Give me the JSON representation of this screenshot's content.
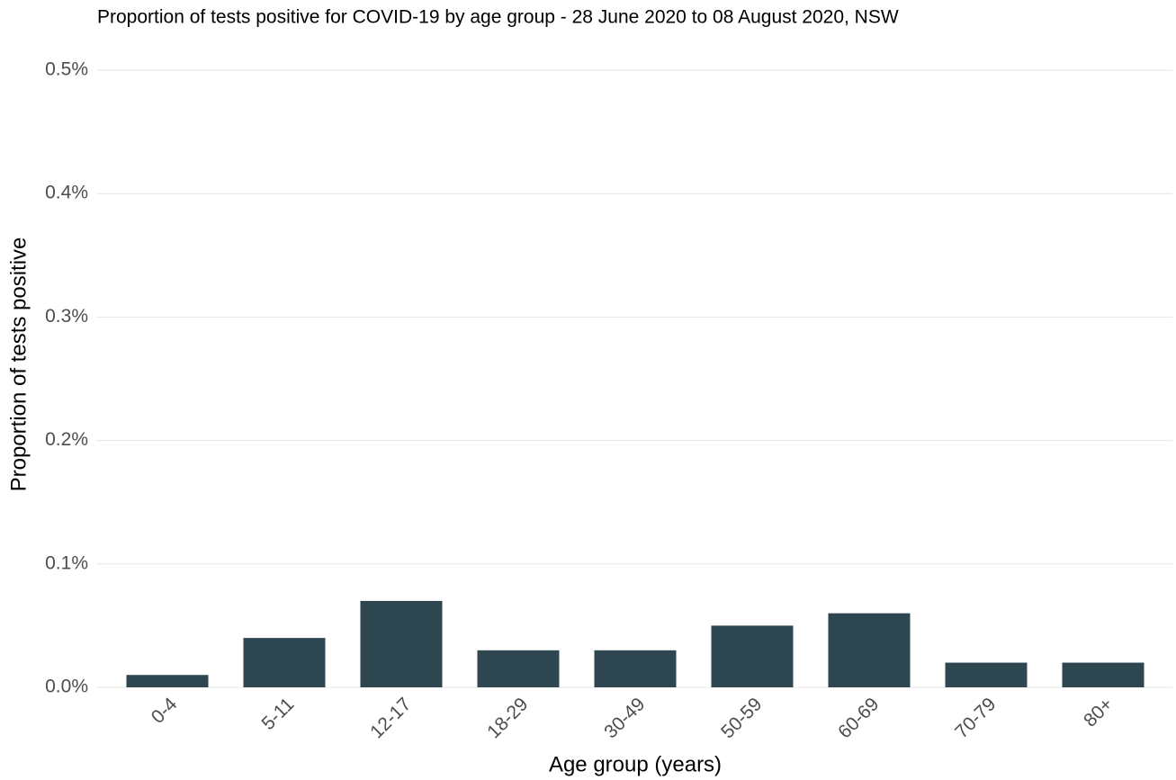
{
  "chart_data": {
    "type": "bar",
    "title": "Proportion of tests positive for COVID-19 by age group - 28 June 2020 to 08 August 2020, NSW",
    "x_label": "Age group (years)",
    "y_label": "Proportion of tests positive",
    "categories": [
      "0-4",
      "5-11",
      "12-17",
      "18-29",
      "30-49",
      "50-59",
      "60-69",
      "70-79",
      "80+"
    ],
    "values": [
      0.01,
      0.04,
      0.07,
      0.03,
      0.03,
      0.05,
      0.06,
      0.02,
      0.02
    ],
    "color": "#2e4650",
    "ylim": [
      0,
      0.5
    ],
    "yticks": [
      {
        "value": 0,
        "label": "0.0%"
      },
      {
        "value": 0.1,
        "label": "0.1%"
      },
      {
        "value": 0.2,
        "label": "0.2%"
      },
      {
        "value": 0.3,
        "label": "0.3%"
      },
      {
        "value": 0.4,
        "label": "0.4%"
      },
      {
        "value": 0.5,
        "label": "0.5%"
      }
    ],
    "grid": true
  }
}
